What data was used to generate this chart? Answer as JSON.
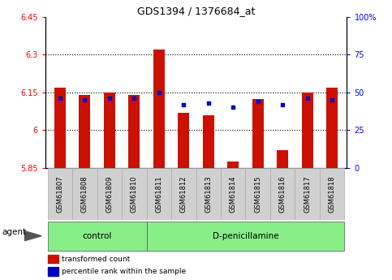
{
  "title": "GDS1394 / 1376684_at",
  "categories": [
    "GSM61807",
    "GSM61808",
    "GSM61809",
    "GSM61810",
    "GSM61811",
    "GSM61812",
    "GSM61813",
    "GSM61814",
    "GSM61815",
    "GSM61816",
    "GSM61817",
    "GSM61818"
  ],
  "bar_values": [
    6.17,
    6.14,
    6.15,
    6.14,
    6.32,
    6.07,
    6.06,
    5.875,
    6.125,
    5.92,
    6.15,
    6.17
  ],
  "percentile_values": [
    46,
    45,
    46,
    46,
    50,
    42,
    43,
    40,
    44,
    42,
    46,
    45
  ],
  "bar_color": "#cc1100",
  "marker_color": "#0000cc",
  "ylim_left": [
    5.85,
    6.45
  ],
  "ylim_right": [
    0,
    100
  ],
  "yticks_left": [
    5.85,
    6.0,
    6.15,
    6.3,
    6.45
  ],
  "ytick_labels_left": [
    "5.85",
    "6",
    "6.15",
    "6.3",
    "6.45"
  ],
  "yticks_right": [
    0,
    25,
    50,
    75,
    100
  ],
  "ytick_labels_right": [
    "0",
    "25",
    "50",
    "75",
    "100%"
  ],
  "hlines": [
    6.0,
    6.15,
    6.3
  ],
  "n_control": 4,
  "n_total": 12,
  "agent_label": "agent",
  "group_labels": [
    "control",
    "D-penicillamine"
  ],
  "legend_items": [
    "transformed count",
    "percentile rank within the sample"
  ],
  "legend_colors": [
    "#cc1100",
    "#0000cc"
  ],
  "bar_width": 0.45,
  "background_color": "#ffffff",
  "plot_bg_color": "#ffffff",
  "group_fill": "#88ee88",
  "label_box_fill": "#d0d0d0",
  "label_box_edge": "#aaaaaa"
}
